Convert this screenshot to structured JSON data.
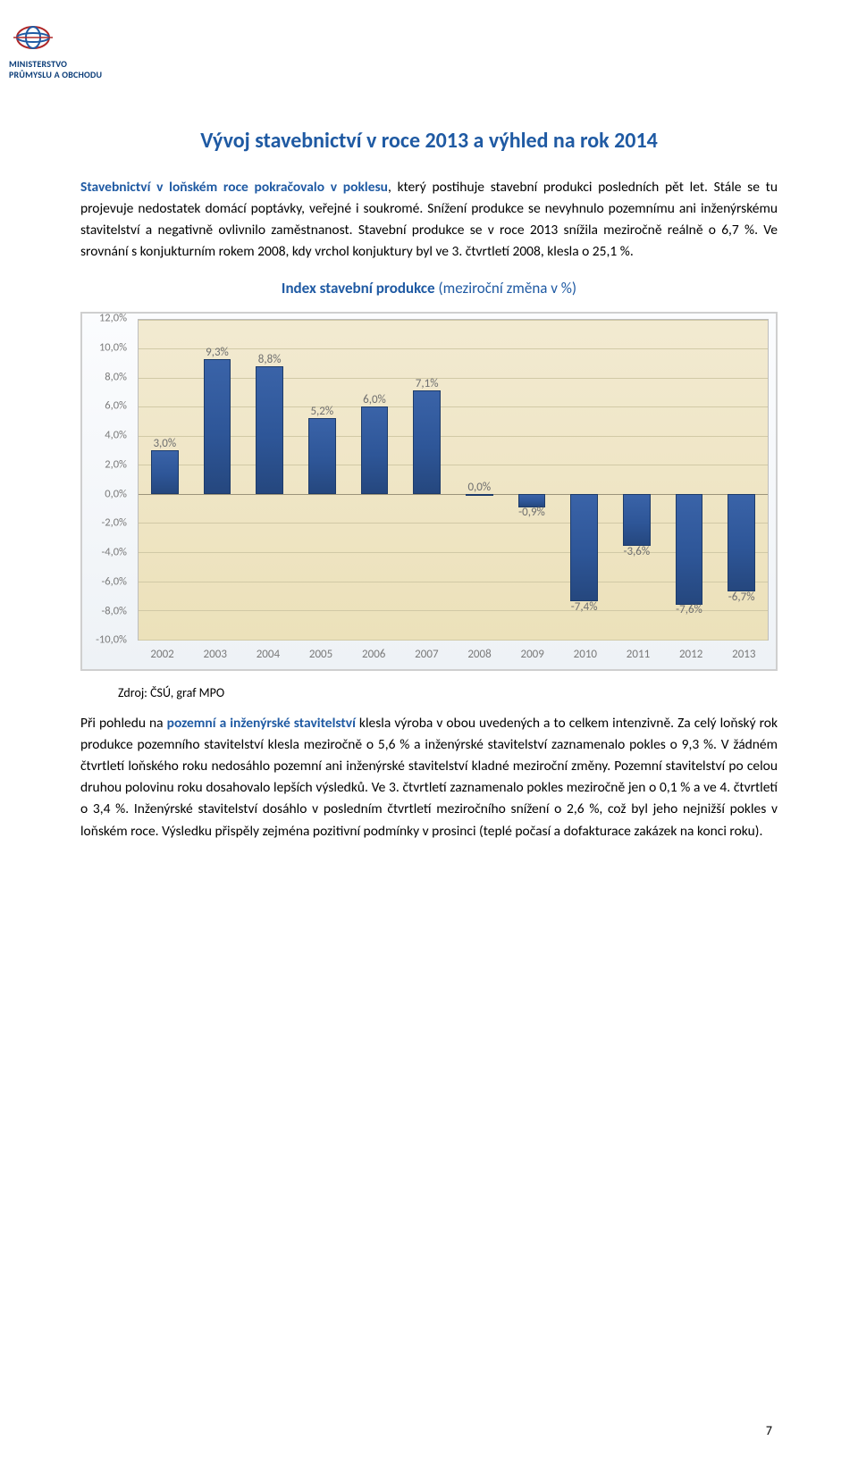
{
  "logo": {
    "line1": "MINISTERSTVO",
    "line2": "PRŮMYSLU A OBCHODU"
  },
  "title": "Vývoj stavebnictví v roce 2013 a výhled na rok 2014",
  "para1": {
    "lead_kw": "Stavebnictví v loňském roce pokračovalo v poklesu",
    "text_after_lead": ", který postihuje stavební produkci posledních pět let. Stále se tu projevuje nedostatek domácí poptávky, veřejné i soukromé. Snížení produkce se nevyhnulo pozemnímu ani inženýrskému stavitelství a negativně ovlivnilo zaměstnanost. Stavební produkce se v roce 2013 snížila meziročně reálně o 6,7 %. Ve srovnání s konjukturním rokem 2008, kdy vrchol konjuktury byl ve 3. čtvrtletí 2008, klesla o 25,1 %."
  },
  "chart_title_main": "Index stavební produkce ",
  "chart_title_paren": "(meziroční změna v %)",
  "source_line": "Zdroj: ČSÚ, graf MPO",
  "para2": {
    "pre": "Při pohledu na ",
    "kw": "pozemní a inženýrské stavitelství",
    "post": " klesla výroba v obou uvedených a to celkem intenzivně. Za celý loňský rok produkce pozemního stavitelství klesla meziročně o 5,6 % a inženýrské stavitelství zaznamenalo pokles o 9,3 %. V žádném čtvrtletí loňského roku nedosáhlo pozemní ani inženýrské stavitelství kladné meziroční změny. Pozemní stavitelství po celou druhou polovinu roku dosahovalo lepších výsledků. Ve 3. čtvrtletí zaznamenalo pokles meziročně jen o 0,1 % a ve 4. čtvrtletí o 3,4 %. Inženýrské stavitelství dosáhlo v posledním čtvrtletí meziročního snížení o 2,6 %, což byl jeho nejnižší pokles v loňském roce. Výsledku přispěly zejména pozitivní podmínky v prosinci (teplé počasí a dofakturace zakázek na konci roku)."
  },
  "page_number": "7",
  "chart": {
    "type": "bar",
    "categories": [
      "2002",
      "2003",
      "2004",
      "2005",
      "2006",
      "2007",
      "2008",
      "2009",
      "2010",
      "2011",
      "2012",
      "2013"
    ],
    "values": [
      3.0,
      9.3,
      8.8,
      5.2,
      6.0,
      7.1,
      0.0,
      -0.9,
      -7.4,
      -3.6,
      -7.6,
      -6.7
    ],
    "value_labels": [
      "3,0%",
      "9,3%",
      "8,8%",
      "5,2%",
      "6,0%",
      "7,1%",
      "0,0%",
      "-0,9%",
      "-7,4%",
      "-3,6%",
      "-7,6%",
      "-6,7%"
    ],
    "ylim": [
      -10,
      12
    ],
    "ytick_step": 2,
    "ytick_labels": [
      "12,0%",
      "10,0%",
      "8,0%",
      "6,0%",
      "4,0%",
      "2,0%",
      "0,0%",
      "-2,0%",
      "-4,0%",
      "-6,0%",
      "-8,0%",
      "-10,0%"
    ],
    "bar_color": "#335f9e",
    "bar_border": "#1d3b6a",
    "grid_color": "#d1c9a6",
    "background_gradient": [
      "#f2ead1",
      "#ece1ba"
    ],
    "plot_border": "#bdbdbd",
    "frame_border": "#cfcfcf",
    "label_color": "#7a7a7a",
    "label_fontsize": 12.5,
    "bar_width_pct": 4.4
  }
}
